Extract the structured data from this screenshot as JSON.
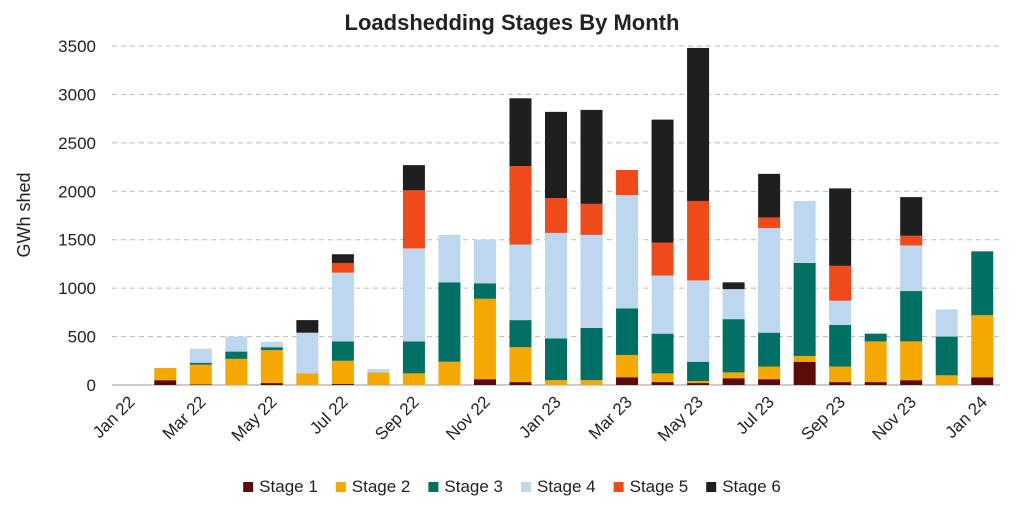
{
  "chart_data": {
    "type": "bar",
    "stacked": true,
    "title": "Loadshedding Stages By Month",
    "y_label": "GWh shed",
    "categories": [
      "Jan 22",
      null,
      "Mar 22",
      null,
      "May 22",
      null,
      "Jul 22",
      null,
      "Sep 22",
      null,
      "Nov 22",
      null,
      "Jan 23",
      null,
      "Mar 23",
      null,
      "May 23",
      null,
      "Jul 23",
      null,
      "Sep 23",
      null,
      "Nov 23",
      null,
      "Jan 24"
    ],
    "series": [
      {
        "name": "Stage 1",
        "color": "#5c0b0b",
        "values": [
          0,
          50,
          5,
          0,
          20,
          0,
          10,
          0,
          0,
          0,
          60,
          30,
          0,
          0,
          80,
          30,
          20,
          70,
          60,
          240,
          30,
          30,
          50,
          0,
          80
        ]
      },
      {
        "name": "Stage 2",
        "color": "#f5a800",
        "values": [
          0,
          125,
          205,
          270,
          340,
          120,
          240,
          130,
          120,
          240,
          830,
          360,
          50,
          50,
          230,
          90,
          20,
          60,
          130,
          60,
          160,
          420,
          400,
          100,
          640
        ]
      },
      {
        "name": "Stage 3",
        "color": "#007065",
        "values": [
          0,
          0,
          20,
          75,
          30,
          0,
          200,
          0,
          330,
          820,
          160,
          280,
          430,
          540,
          480,
          410,
          200,
          550,
          350,
          960,
          430,
          80,
          520,
          400,
          660
        ]
      },
      {
        "name": "Stage 4",
        "color": "#bdd7ee",
        "values": [
          0,
          0,
          145,
          155,
          55,
          420,
          710,
          35,
          960,
          490,
          450,
          780,
          1090,
          960,
          1170,
          600,
          840,
          310,
          1080,
          640,
          250,
          0,
          470,
          280,
          0
        ]
      },
      {
        "name": "Stage 5",
        "color": "#f04a1a",
        "values": [
          0,
          0,
          0,
          0,
          0,
          0,
          100,
          0,
          600,
          0,
          0,
          810,
          360,
          320,
          260,
          340,
          820,
          0,
          110,
          0,
          360,
          0,
          100,
          0,
          0
        ]
      },
      {
        "name": "Stage 6",
        "color": "#1f1f1f",
        "values": [
          0,
          0,
          0,
          0,
          0,
          130,
          90,
          0,
          260,
          0,
          0,
          700,
          890,
          970,
          0,
          1270,
          1580,
          70,
          450,
          0,
          800,
          0,
          400,
          0,
          0
        ]
      }
    ],
    "ylim": [
      0,
      3500
    ],
    "yticks": [
      0,
      500,
      1000,
      1500,
      2000,
      2500,
      3000,
      3500
    ],
    "grid": true,
    "legend": "bottom"
  }
}
